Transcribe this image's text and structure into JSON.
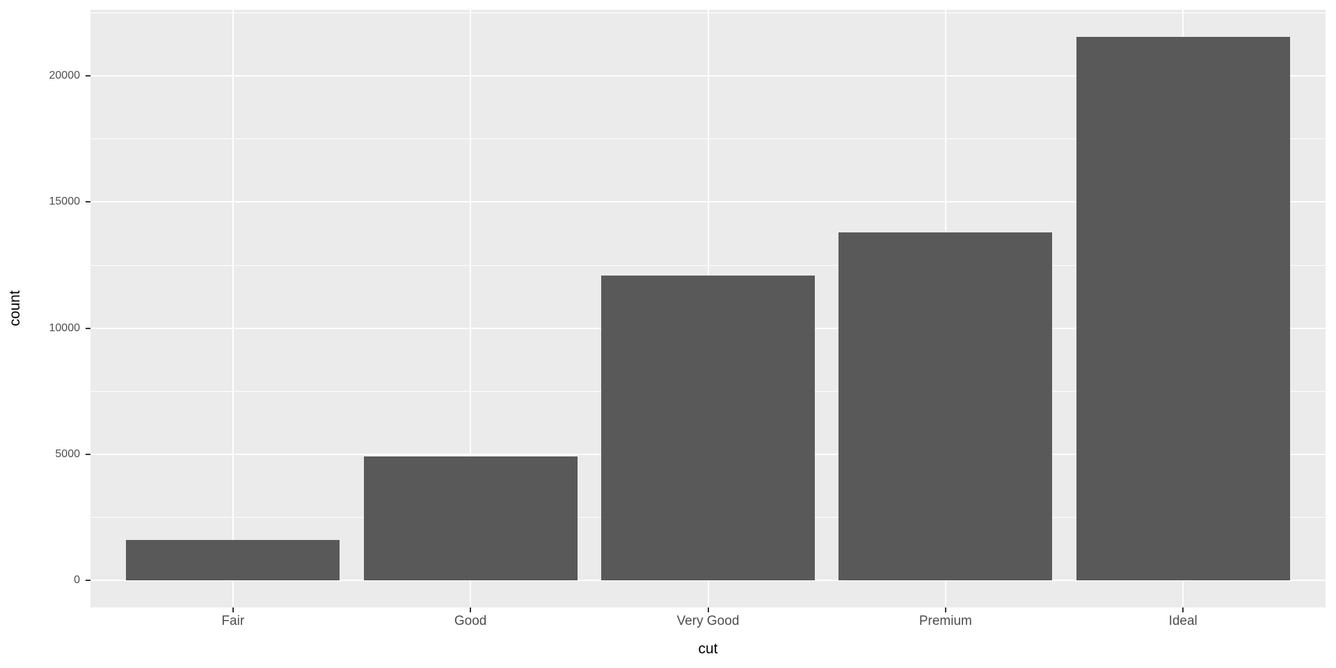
{
  "chart_data": {
    "type": "bar",
    "title": "",
    "xlabel": "cut",
    "ylabel": "count",
    "categories": [
      "Fair",
      "Good",
      "Very Good",
      "Premium",
      "Ideal"
    ],
    "values": [
      1610,
      4906,
      12082,
      13791,
      21551
    ],
    "y_ticks": [
      0,
      5000,
      10000,
      15000,
      20000
    ],
    "y_tick_labels": [
      "0",
      "5000",
      "10000",
      "15000",
      "20000"
    ],
    "y_minor_ticks": [
      2500,
      7500,
      12500,
      17500,
      22500
    ],
    "ylim": [
      -1078,
      22629
    ],
    "grid": true,
    "legend": "none",
    "colors": {
      "bar_fill": "#595959",
      "panel_background": "#EBEBEB",
      "gridline": "#FFFFFF",
      "tick_text": "#4D4D4D",
      "axis_title_text": "#000000",
      "tick_mark": "#333333",
      "page_background": "#FFFFFF"
    }
  }
}
